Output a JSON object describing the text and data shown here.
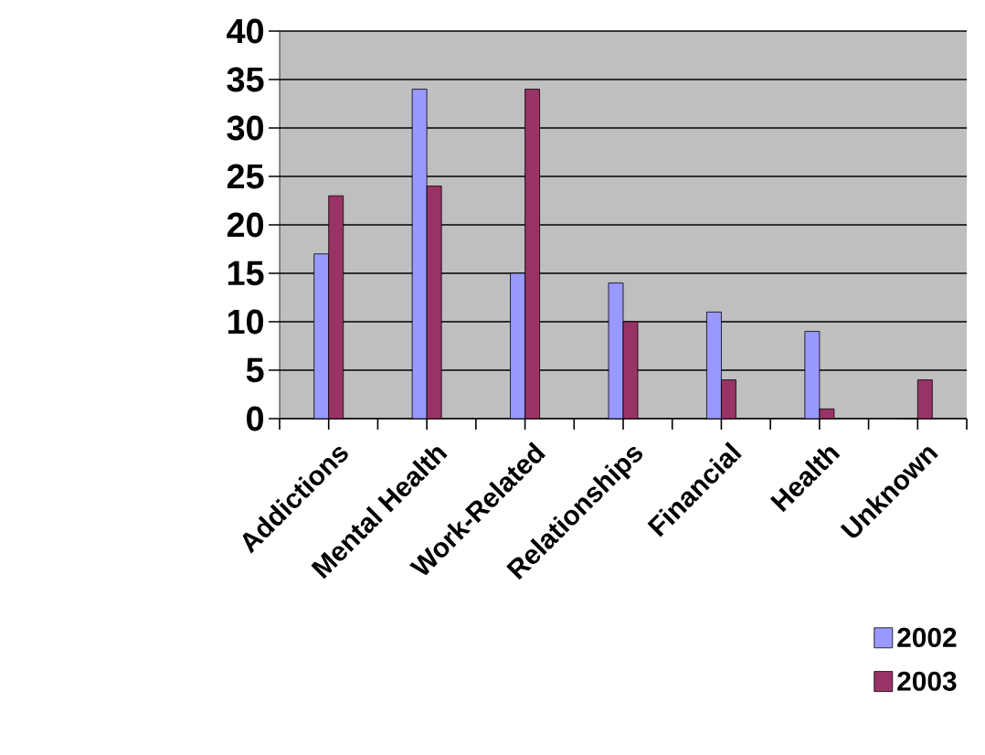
{
  "chart_data": {
    "type": "bar",
    "categories": [
      "Addictions",
      "Mental Health",
      "Work-Related",
      "Relationships",
      "Financial",
      "Health",
      "Unknown"
    ],
    "series": [
      {
        "name": "2002",
        "color": "#9999ff",
        "values": [
          17,
          34,
          15,
          14,
          11,
          9,
          0
        ]
      },
      {
        "name": "2003",
        "color": "#993366",
        "values": [
          23,
          24,
          34,
          10,
          4,
          1,
          4
        ]
      }
    ],
    "ylim": [
      0,
      40
    ],
    "yticks": [
      0,
      5,
      10,
      15,
      20,
      25,
      30,
      35,
      40
    ],
    "grid": "y",
    "legend": "bottom right"
  }
}
